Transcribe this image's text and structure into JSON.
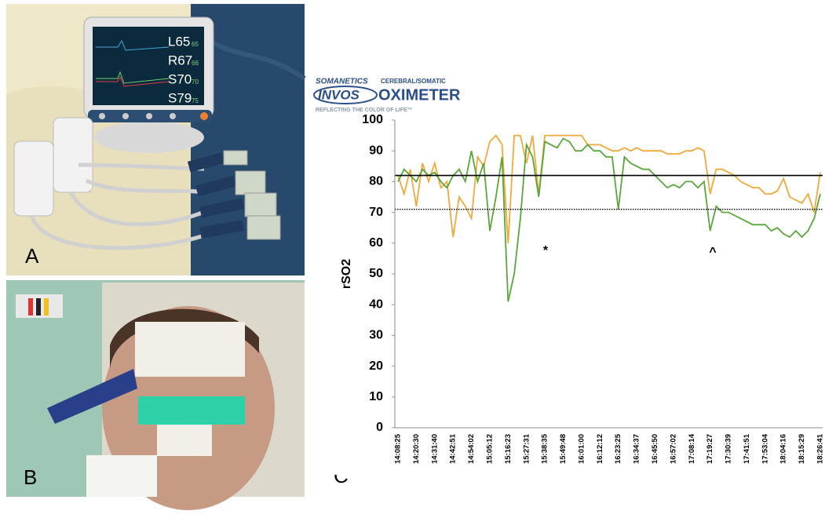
{
  "panels": {
    "a": {
      "label": "A",
      "monitor_readings": [
        {
          "main": "L65",
          "sub": "65"
        },
        {
          "main": "R67",
          "sub": "66"
        },
        {
          "main": "S70",
          "sub": "70"
        },
        {
          "main": "S79",
          "sub": "75"
        }
      ]
    },
    "b": {
      "label": "B"
    },
    "c": {
      "label": "C"
    }
  },
  "logo": {
    "brand": "SOMANETICS",
    "kind": "CEREBRAL/SOMATIC",
    "name": "INVOS",
    "product": "OXIMETER",
    "tagline": "REFLECTING THE COLOR OF LIFE™"
  },
  "chart_data": {
    "type": "line",
    "y_label": "rSO2",
    "categories": [
      "14:08:25",
      null,
      null,
      "14:20:30",
      null,
      null,
      "14:31:40",
      null,
      null,
      "14:42:51",
      null,
      null,
      "14:54:02",
      null,
      null,
      "15:05:12",
      null,
      null,
      "15:16:23",
      null,
      null,
      "15:27:31",
      null,
      null,
      "15:38:35",
      null,
      null,
      "15:49:48",
      null,
      null,
      "16:01:00",
      null,
      null,
      "16:12:12",
      null,
      null,
      "16:23:25",
      null,
      null,
      "16:34:37",
      null,
      null,
      "16:45:50",
      null,
      null,
      "16:57:02",
      null,
      null,
      "17:08:14",
      null,
      null,
      "17:19:27",
      null,
      null,
      "17:30:39",
      null,
      null,
      "17:41:51",
      null,
      null,
      "17:53:04",
      null,
      null,
      "18:04:16",
      null,
      null,
      "18:15:29",
      null,
      null,
      "18:26:41"
    ],
    "series": [
      {
        "color": "#f2a93b",
        "values": [
          82,
          76,
          84,
          72,
          86,
          80,
          86,
          78,
          80,
          62,
          75,
          72,
          68,
          88,
          85,
          93,
          95,
          92,
          60,
          95,
          95,
          86,
          95,
          76,
          95,
          95,
          95,
          95,
          95,
          95,
          95,
          92,
          92,
          92,
          91,
          90,
          90,
          91,
          90,
          91,
          90,
          90,
          90,
          90,
          89,
          89,
          89,
          90,
          90,
          91,
          90,
          76,
          84,
          84,
          83,
          82,
          80,
          79,
          78,
          78,
          76,
          76,
          77,
          81,
          75,
          74,
          73,
          76,
          70,
          83
        ]
      },
      {
        "color": "#5aa63a",
        "values": [
          80,
          84,
          82,
          80,
          84,
          82,
          83,
          80,
          78,
          82,
          84,
          80,
          90,
          80,
          86,
          64,
          75,
          88,
          41,
          50,
          68,
          92,
          88,
          75,
          93,
          92,
          91,
          94,
          93,
          90,
          90,
          92,
          90,
          90,
          88,
          88,
          71,
          88,
          86,
          85,
          84,
          84,
          82,
          80,
          78,
          79,
          78,
          80,
          80,
          78,
          80,
          64,
          72,
          70,
          70,
          69,
          68,
          67,
          66,
          66,
          66,
          64,
          65,
          63,
          62,
          64,
          62,
          64,
          68,
          76
        ]
      }
    ],
    "hlines": [
      {
        "value": 82,
        "style": "solid"
      },
      {
        "value": 71,
        "style": "dotted"
      }
    ],
    "annotations": [
      "*",
      "^"
    ],
    "ylim": [
      0,
      100
    ],
    "yticks": [
      0,
      10,
      20,
      30,
      40,
      50,
      60,
      70,
      80,
      90,
      100
    ]
  }
}
